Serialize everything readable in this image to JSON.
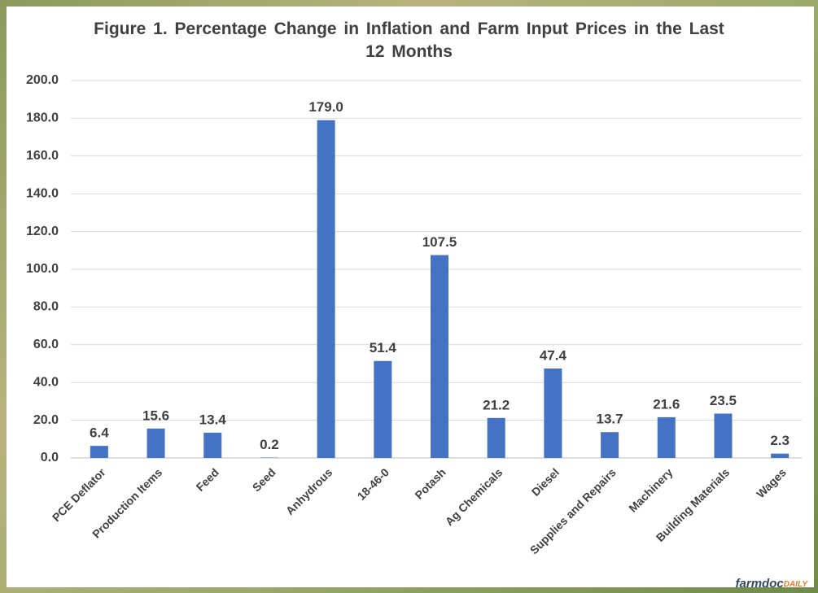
{
  "chart_data": {
    "type": "bar",
    "title": "Figure 1. Percentage Change in Inflation and Farm Input Prices in the Last 12 Months",
    "categories": [
      "PCE Deflator",
      "Production Items",
      "Feed",
      "Seed",
      "Anhydrous",
      "18-46-0",
      "Potash",
      "Ag Chemicals",
      "Diesel",
      "Supplies and Repairs",
      "Machinery",
      "Building Materials",
      "Wages"
    ],
    "values": [
      6.4,
      15.6,
      13.4,
      0.2,
      179.0,
      51.4,
      107.5,
      21.2,
      47.4,
      13.7,
      21.6,
      23.5,
      2.3
    ],
    "value_labels": [
      "6.4",
      "15.6",
      "13.4",
      "0.2",
      "179.0",
      "51.4",
      "107.5",
      "21.2",
      "47.4",
      "13.7",
      "21.6",
      "23.5",
      "2.3"
    ],
    "color": "#4472c4",
    "ylim": [
      0,
      200
    ],
    "yticks": [
      {
        "value": 0,
        "label": "0.0"
      },
      {
        "value": 20,
        "label": "20.0"
      },
      {
        "value": 40,
        "label": "40.0"
      },
      {
        "value": 60,
        "label": "60.0"
      },
      {
        "value": 80,
        "label": "80.0"
      },
      {
        "value": 100,
        "label": "100.0"
      },
      {
        "value": 120,
        "label": "120.0"
      },
      {
        "value": 140,
        "label": "140.0"
      },
      {
        "value": 160,
        "label": "160.0"
      },
      {
        "value": 180,
        "label": "180.0"
      },
      {
        "value": 200,
        "label": "200.0"
      }
    ],
    "grid": true,
    "logo_main": "farmdoc",
    "logo_accent": "DAILY"
  }
}
